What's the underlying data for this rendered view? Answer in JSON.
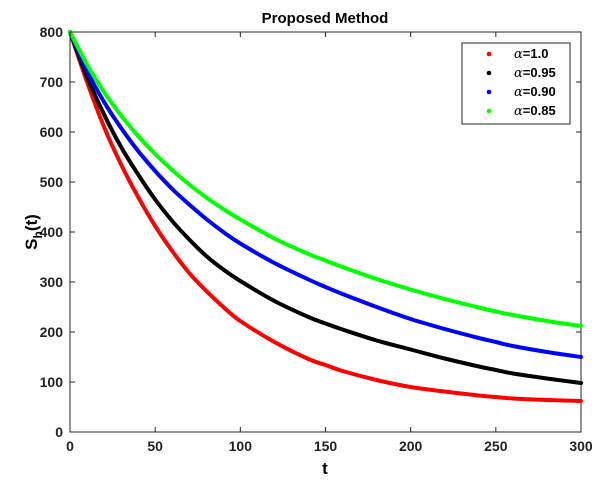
{
  "chart_data": {
    "type": "line",
    "title": "Proposed Method",
    "xlabel": "t",
    "ylabel_main": "S",
    "ylabel_sub": "h",
    "ylabel_tail": "(t)",
    "xlim": [
      0,
      300
    ],
    "ylim": [
      0,
      800
    ],
    "xticks": [
      0,
      50,
      100,
      150,
      200,
      250,
      300
    ],
    "yticks": [
      0,
      100,
      200,
      300,
      400,
      500,
      600,
      700,
      800
    ],
    "grid": false,
    "legend_position": "top-right",
    "legend_symbol": "α",
    "series": [
      {
        "name": "=1.0",
        "color": "#ff0000",
        "x": [
          0,
          10,
          20,
          30,
          40,
          50,
          60,
          70,
          80,
          90,
          100,
          120,
          140,
          150,
          160,
          180,
          200,
          220,
          240,
          250,
          260,
          280,
          300
        ],
        "y": [
          800,
          700,
          610,
          535,
          470,
          412,
          362,
          318,
          282,
          250,
          222,
          180,
          146,
          134,
          122,
          104,
          90,
          81,
          73,
          70,
          67,
          64,
          62
        ]
      },
      {
        "name": "=0.95",
        "color": "#000000",
        "x": [
          0,
          10,
          20,
          30,
          40,
          50,
          60,
          70,
          80,
          90,
          100,
          120,
          140,
          150,
          160,
          180,
          200,
          220,
          240,
          250,
          260,
          280,
          300
        ],
        "y": [
          800,
          710,
          635,
          570,
          515,
          465,
          422,
          385,
          352,
          325,
          302,
          262,
          230,
          217,
          205,
          183,
          165,
          147,
          131,
          124,
          117,
          107,
          98
        ]
      },
      {
        "name": "=0.90",
        "color": "#0000ff",
        "x": [
          0,
          10,
          20,
          30,
          40,
          50,
          60,
          70,
          80,
          90,
          100,
          120,
          140,
          150,
          160,
          180,
          200,
          220,
          240,
          250,
          260,
          280,
          300
        ],
        "y": [
          800,
          722,
          660,
          608,
          562,
          522,
          486,
          455,
          426,
          400,
          377,
          338,
          305,
          290,
          276,
          250,
          226,
          206,
          188,
          180,
          172,
          160,
          150
        ]
      },
      {
        "name": "=0.85",
        "color": "#00ff00",
        "x": [
          0,
          10,
          20,
          30,
          40,
          50,
          60,
          70,
          80,
          90,
          100,
          120,
          140,
          150,
          160,
          180,
          200,
          220,
          240,
          250,
          260,
          280,
          300
        ],
        "y": [
          800,
          735,
          680,
          633,
          592,
          556,
          524,
          495,
          469,
          446,
          425,
          387,
          356,
          343,
          330,
          306,
          285,
          266,
          249,
          241,
          234,
          222,
          212
        ]
      }
    ]
  }
}
